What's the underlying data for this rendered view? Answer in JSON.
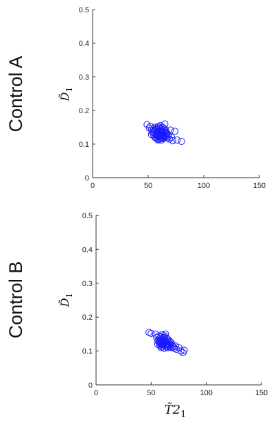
{
  "chart_data": [
    {
      "type": "scatter",
      "row_label": "Control A",
      "ylabel": "D̃",
      "ylabel_sub": "1",
      "xlabel": "",
      "xlim": [
        0,
        150
      ],
      "ylim": [
        0,
        0.5
      ],
      "xticks": [
        "0",
        "50",
        "100",
        "150"
      ],
      "yticks": [
        "0",
        "0.1",
        "0.2",
        "0.3",
        "0.4",
        "0.5"
      ],
      "marker": "open-circle",
      "marker_color": "#1a1aff",
      "series": [
        {
          "x": [
            49,
            51,
            52,
            53,
            54,
            55,
            55,
            56,
            56,
            57,
            57,
            57,
            58,
            58,
            58,
            58,
            59,
            59,
            59,
            59,
            60,
            60,
            60,
            60,
            60,
            61,
            61,
            61,
            61,
            62,
            62,
            62,
            62,
            63,
            63,
            63,
            63,
            64,
            64,
            64,
            65,
            65,
            65,
            66,
            66,
            67,
            67,
            68,
            69,
            70,
            71,
            72,
            74,
            76,
            80,
            53,
            56,
            59,
            62,
            65,
            57,
            60,
            63,
            66,
            58,
            61,
            64,
            55,
            68
          ],
          "y": [
            0.158,
            0.148,
            0.153,
            0.142,
            0.135,
            0.145,
            0.128,
            0.15,
            0.12,
            0.14,
            0.132,
            0.118,
            0.145,
            0.138,
            0.125,
            0.115,
            0.152,
            0.135,
            0.128,
            0.112,
            0.148,
            0.14,
            0.13,
            0.122,
            0.115,
            0.155,
            0.138,
            0.126,
            0.118,
            0.145,
            0.133,
            0.124,
            0.112,
            0.15,
            0.136,
            0.128,
            0.12,
            0.142,
            0.13,
            0.118,
            0.16,
            0.135,
            0.122,
            0.14,
            0.125,
            0.132,
            0.118,
            0.128,
            0.115,
            0.142,
            0.12,
            0.11,
            0.138,
            0.112,
            0.108,
            0.128,
            0.142,
            0.122,
            0.14,
            0.145,
            0.126,
            0.136,
            0.116,
            0.132,
            0.148,
            0.124,
            0.126,
            0.136,
            0.122
          ]
        }
      ]
    },
    {
      "type": "scatter",
      "row_label": "Control B",
      "ylabel": "D̃",
      "ylabel_sub": "1",
      "xlabel": "T̃2",
      "xlabel_sub": "1",
      "xlim": [
        0,
        150
      ],
      "ylim": [
        0,
        0.5
      ],
      "xticks": [
        "0",
        "50",
        "100",
        "150"
      ],
      "yticks": [
        "0",
        "0.1",
        "0.2",
        "0.3",
        "0.4",
        "0.5"
      ],
      "marker": "open-circle",
      "marker_color": "#1a1aff",
      "series": [
        {
          "x": [
            48,
            50,
            54,
            55,
            56,
            56,
            57,
            57,
            58,
            58,
            58,
            59,
            59,
            59,
            60,
            60,
            60,
            60,
            61,
            61,
            61,
            62,
            62,
            62,
            62,
            63,
            63,
            63,
            64,
            64,
            64,
            65,
            65,
            65,
            66,
            66,
            67,
            67,
            68,
            68,
            69,
            70,
            71,
            72,
            73,
            75,
            77,
            79,
            80,
            57,
            60,
            63,
            66,
            59,
            62,
            65,
            61,
            64,
            58,
            67
          ],
          "y": [
            0.155,
            0.152,
            0.15,
            0.14,
            0.13,
            0.12,
            0.145,
            0.125,
            0.138,
            0.128,
            0.115,
            0.142,
            0.12,
            0.11,
            0.148,
            0.135,
            0.125,
            0.112,
            0.14,
            0.128,
            0.118,
            0.145,
            0.132,
            0.122,
            0.108,
            0.15,
            0.125,
            0.115,
            0.138,
            0.128,
            0.112,
            0.135,
            0.12,
            0.11,
            0.132,
            0.118,
            0.128,
            0.112,
            0.125,
            0.11,
            0.118,
            0.112,
            0.108,
            0.115,
            0.105,
            0.11,
            0.1,
            0.095,
            0.102,
            0.132,
            0.118,
            0.128,
            0.122,
            0.125,
            0.14,
            0.115,
            0.13,
            0.12,
            0.122,
            0.12
          ]
        }
      ]
    }
  ]
}
